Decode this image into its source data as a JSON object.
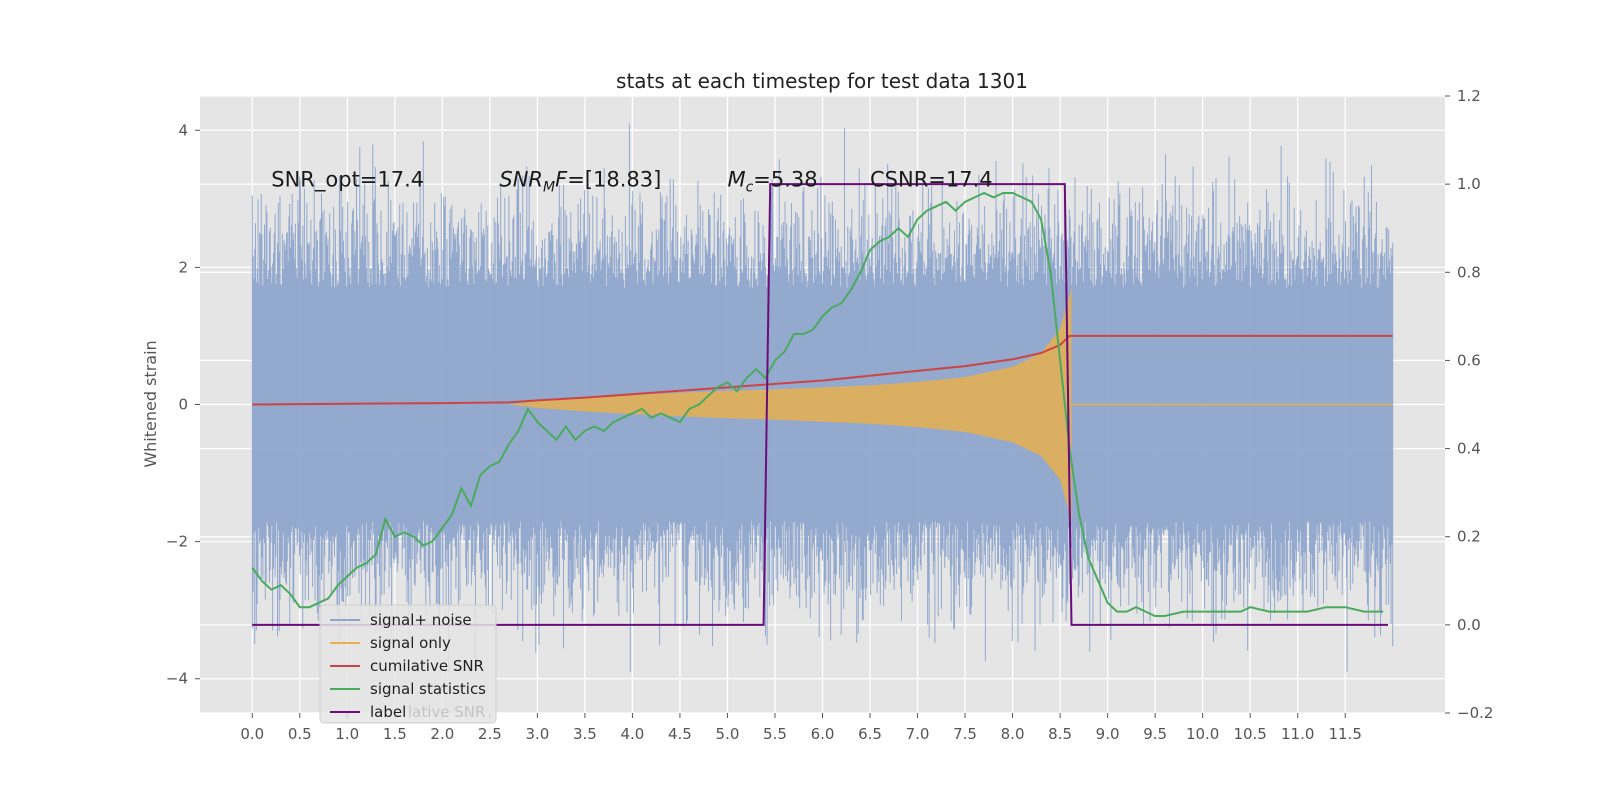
{
  "chart_data": {
    "type": "line",
    "title": "stats at each timestep for test data 1301",
    "ylabel": "Whitened strain",
    "xlabel": "",
    "xlim": [
      -0.55,
      12.55
    ],
    "ylim": [
      -4.5,
      4.5
    ],
    "y2lim": [
      -0.2,
      1.2
    ],
    "grid": true,
    "legend_position": "lower-left",
    "x_ticks": [
      0.0,
      0.5,
      1.0,
      1.5,
      2.0,
      2.5,
      3.0,
      3.5,
      4.0,
      4.5,
      5.0,
      5.5,
      6.0,
      6.5,
      7.0,
      7.5,
      8.0,
      8.5,
      9.0,
      9.5,
      10.0,
      10.5,
      11.0,
      11.5
    ],
    "x_tick_labels": [
      "0.0",
      "0.5",
      "1.0",
      "1.5",
      "2.0",
      "2.5",
      "3.0",
      "3.5",
      "4.0",
      "4.5",
      "5.0",
      "5.5",
      "6.0",
      "6.5",
      "7.0",
      "7.5",
      "8.0",
      "8.5",
      "9.0",
      "9.5",
      "10.0",
      "10.5",
      "11.0",
      "11.5"
    ],
    "y_ticks": [
      -4,
      -2,
      0,
      2,
      4
    ],
    "y_tick_labels": [
      "−4",
      "−2",
      "0",
      "2",
      "4"
    ],
    "y2_ticks": [
      -0.2,
      0.0,
      0.2,
      0.4,
      0.6,
      0.8,
      1.0,
      1.2
    ],
    "y2_tick_labels": [
      "−0.2",
      "0.0",
      "0.2",
      "0.4",
      "0.6",
      "0.8",
      "1.0",
      "1.2"
    ],
    "annotations": [
      {
        "text": "SNR_opt=17.4",
        "x": 0.2,
        "y": 3.3
      },
      {
        "text": "SNR_M F=[18.83]",
        "x": 2.6,
        "y": 3.3
      },
      {
        "text": "M_c=5.38",
        "x": 5.0,
        "y": 3.3
      },
      {
        "text": "CSNR=17.4",
        "x": 6.5,
        "y": 3.3
      }
    ],
    "series": [
      {
        "name": "signal+ noise",
        "color": "#8fa5cc",
        "axis": "left",
        "kind": "noise-band",
        "x_range": [
          0.0,
          12.0
        ],
        "envelope_typical": 2.0,
        "envelope_peak": 4.1
      },
      {
        "name": "signal only",
        "color": "#e8b04e",
        "axis": "left",
        "kind": "chirp-envelope",
        "x": [
          2.7,
          3.0,
          3.5,
          4.0,
          4.5,
          5.0,
          5.5,
          6.0,
          6.5,
          7.0,
          7.5,
          8.0,
          8.3,
          8.5,
          8.62
        ],
        "amplitude": [
          0.0,
          0.05,
          0.1,
          0.14,
          0.17,
          0.2,
          0.22,
          0.25,
          0.28,
          0.33,
          0.4,
          0.55,
          0.75,
          1.1,
          1.7
        ]
      },
      {
        "name": "cumilative SNR",
        "color": "#cc4444",
        "axis": "left",
        "x": [
          0.0,
          1.0,
          2.0,
          2.7,
          3.0,
          3.5,
          4.0,
          4.5,
          5.0,
          5.5,
          6.0,
          6.5,
          7.0,
          7.5,
          8.0,
          8.3,
          8.5,
          8.6,
          9.0,
          10.0,
          11.0,
          12.0
        ],
        "y": [
          0.0,
          0.01,
          0.02,
          0.03,
          0.06,
          0.1,
          0.15,
          0.2,
          0.25,
          0.3,
          0.35,
          0.42,
          0.49,
          0.56,
          0.66,
          0.75,
          0.87,
          1.0,
          1.0,
          1.0,
          1.0,
          1.0
        ]
      },
      {
        "name": "signal statistics",
        "color": "#4aaa5e",
        "axis": "right",
        "x": [
          0.0,
          0.1,
          0.2,
          0.3,
          0.4,
          0.5,
          0.6,
          0.7,
          0.8,
          0.9,
          1.0,
          1.1,
          1.2,
          1.3,
          1.4,
          1.5,
          1.6,
          1.7,
          1.8,
          1.9,
          2.0,
          2.1,
          2.2,
          2.3,
          2.4,
          2.5,
          2.6,
          2.7,
          2.8,
          2.9,
          3.0,
          3.1,
          3.2,
          3.3,
          3.4,
          3.5,
          3.6,
          3.7,
          3.8,
          3.9,
          4.0,
          4.1,
          4.2,
          4.3,
          4.4,
          4.5,
          4.6,
          4.7,
          4.8,
          4.9,
          5.0,
          5.1,
          5.2,
          5.3,
          5.4,
          5.5,
          5.6,
          5.7,
          5.8,
          5.9,
          6.0,
          6.1,
          6.2,
          6.3,
          6.4,
          6.5,
          6.6,
          6.7,
          6.8,
          6.9,
          7.0,
          7.1,
          7.2,
          7.3,
          7.4,
          7.5,
          7.6,
          7.7,
          7.8,
          7.9,
          8.0,
          8.1,
          8.2,
          8.3,
          8.4,
          8.5,
          8.6,
          8.7,
          8.8,
          8.9,
          9.0,
          9.1,
          9.2,
          9.3,
          9.4,
          9.5,
          9.6,
          9.8,
          10.0,
          10.2,
          10.4,
          10.5,
          10.7,
          10.9,
          11.1,
          11.3,
          11.5,
          11.7,
          11.9
        ],
        "y": [
          0.13,
          0.1,
          0.08,
          0.09,
          0.07,
          0.04,
          0.04,
          0.05,
          0.06,
          0.09,
          0.11,
          0.13,
          0.14,
          0.16,
          0.24,
          0.2,
          0.21,
          0.2,
          0.18,
          0.19,
          0.22,
          0.25,
          0.31,
          0.27,
          0.34,
          0.36,
          0.37,
          0.41,
          0.44,
          0.49,
          0.46,
          0.44,
          0.42,
          0.45,
          0.42,
          0.44,
          0.45,
          0.44,
          0.46,
          0.47,
          0.48,
          0.49,
          0.47,
          0.48,
          0.47,
          0.46,
          0.49,
          0.5,
          0.52,
          0.54,
          0.55,
          0.53,
          0.56,
          0.58,
          0.56,
          0.6,
          0.62,
          0.66,
          0.66,
          0.67,
          0.7,
          0.72,
          0.73,
          0.76,
          0.8,
          0.85,
          0.87,
          0.88,
          0.9,
          0.88,
          0.92,
          0.94,
          0.95,
          0.96,
          0.94,
          0.96,
          0.97,
          0.98,
          0.97,
          0.98,
          0.98,
          0.97,
          0.96,
          0.92,
          0.8,
          0.6,
          0.4,
          0.25,
          0.15,
          0.1,
          0.05,
          0.03,
          0.03,
          0.04,
          0.03,
          0.02,
          0.02,
          0.03,
          0.03,
          0.03,
          0.03,
          0.04,
          0.03,
          0.03,
          0.03,
          0.04,
          0.04,
          0.03,
          0.03
        ]
      },
      {
        "name": "label",
        "color": "#6a0d7a",
        "axis": "right",
        "x": [
          0.0,
          5.38,
          5.45,
          8.55,
          8.62,
          11.95
        ],
        "y": [
          0.0,
          0.0,
          1.0,
          1.0,
          0.0,
          0.0
        ]
      }
    ],
    "legend": {
      "entries": [
        "signal+ noise",
        "signal only",
        "cumilative SNR",
        "signal statistics",
        "label"
      ],
      "ghost_text": "lative SNR"
    },
    "colors": {
      "plot_background": "#e5e5e5",
      "grid": "#ffffff",
      "band_fill": "#e8b04e"
    }
  }
}
